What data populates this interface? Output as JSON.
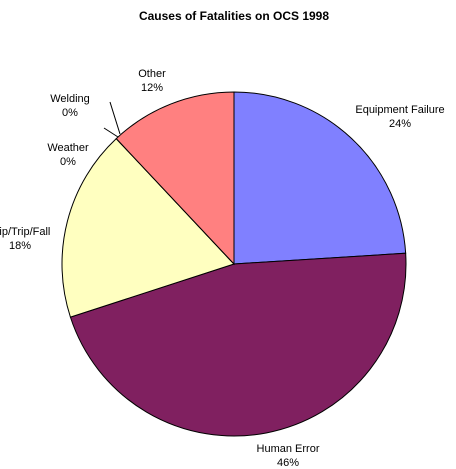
{
  "chart_data": {
    "type": "pie",
    "title": "Causes of Fatalities on OCS 1998",
    "categories": [
      "Equipment Failure",
      "Human Error",
      "Slip/Trip/Fall",
      "Weather",
      "Welding",
      "Other"
    ],
    "values": [
      24,
      46,
      18,
      0,
      0,
      12
    ],
    "value_labels": [
      "24%",
      "46%",
      "18%",
      "0%",
      "0%",
      "12%"
    ],
    "colors": [
      "#8080ff",
      "#802060",
      "#ffffc0",
      "#00ffff",
      "#ff00ff",
      "#ff8080"
    ]
  }
}
